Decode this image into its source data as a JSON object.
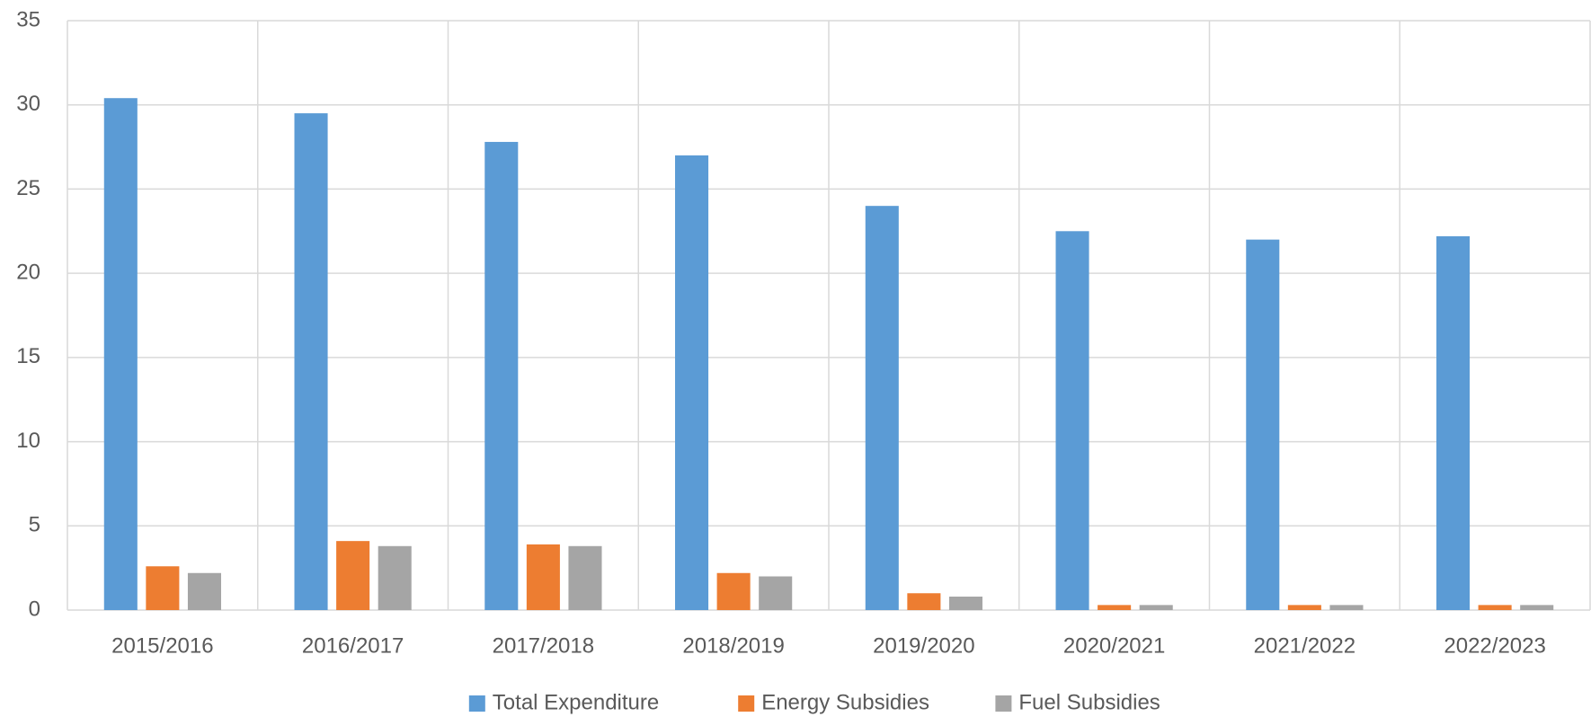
{
  "chart_data": {
    "type": "bar",
    "categories": [
      "2015/2016",
      "2016/2017",
      "2017/2018",
      "2018/2019",
      "2019/2020",
      "2020/2021",
      "2021/2022",
      "2022/2023"
    ],
    "series": [
      {
        "name": "Total Expenditure",
        "color": "#5b9bd5",
        "values": [
          30.4,
          29.5,
          27.8,
          27,
          24,
          22.5,
          22,
          22.2
        ]
      },
      {
        "name": "Energy Subsidies",
        "color": "#ed7d31",
        "values": [
          2.6,
          4.1,
          3.9,
          2.2,
          1.0,
          0.3,
          0.3,
          0.3
        ]
      },
      {
        "name": "Fuel Subsidies",
        "color": "#a5a5a5",
        "values": [
          2.2,
          3.8,
          3.8,
          2.0,
          0.8,
          0.3,
          0.3,
          0.3
        ]
      }
    ],
    "ylim": [
      0,
      35
    ],
    "yticks": [
      0,
      5,
      10,
      15,
      20,
      25,
      30,
      35
    ],
    "grid": true,
    "legend": "bottom"
  }
}
